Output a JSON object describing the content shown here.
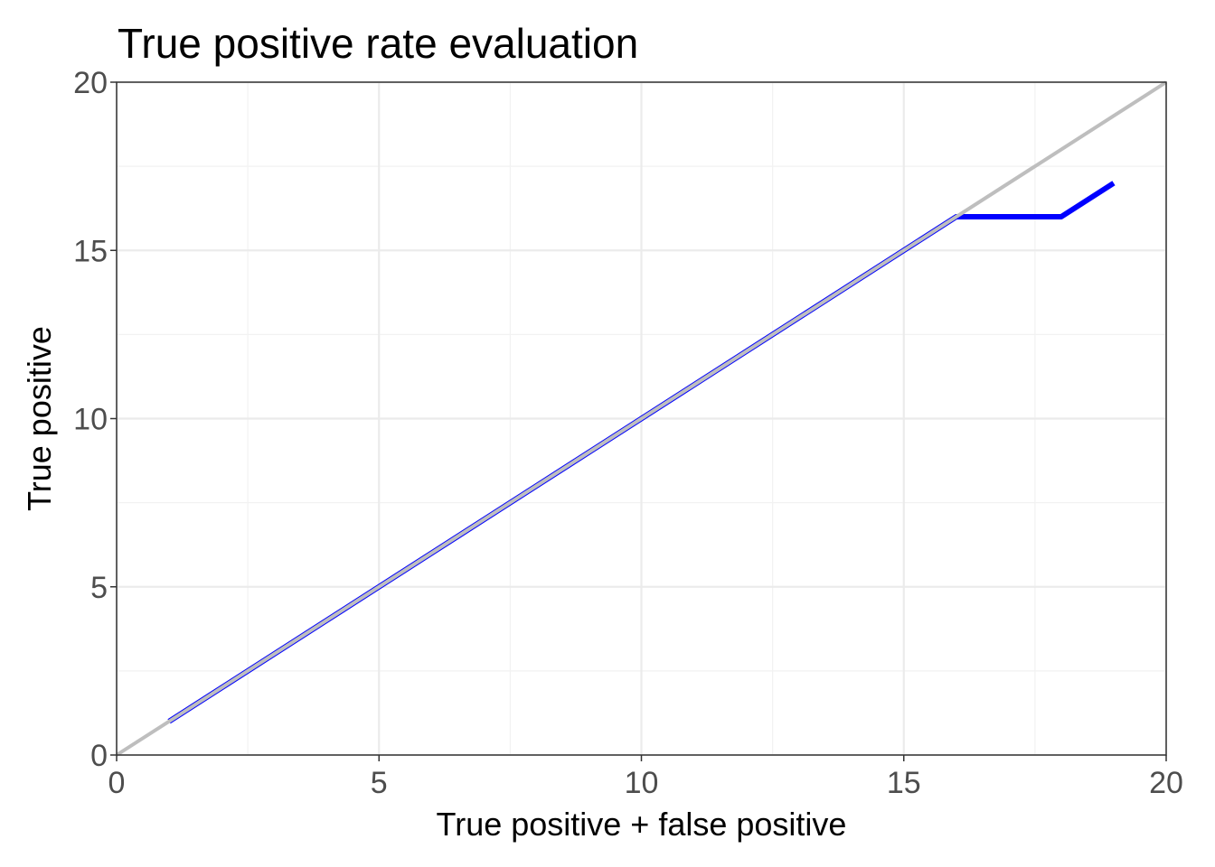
{
  "chart_data": {
    "type": "line",
    "title": "True positive rate evaluation",
    "xlabel": "True positive + false positive",
    "ylabel": "True positive",
    "xlim": [
      0,
      20
    ],
    "ylim": [
      0,
      20
    ],
    "x_ticks": [
      "0",
      "5",
      "10",
      "15",
      "20"
    ],
    "y_ticks": [
      "0",
      "5",
      "10",
      "15",
      "20"
    ],
    "grid": true,
    "legend": "none",
    "reference_line": {
      "x": [
        0,
        20
      ],
      "y": [
        0,
        20
      ],
      "color": "#bebebe"
    },
    "series": [
      {
        "x": [
          1,
          2,
          3,
          4,
          5,
          6,
          7,
          8,
          9,
          10,
          11,
          12,
          13,
          14,
          15,
          16,
          17,
          18,
          19
        ],
        "y": [
          1,
          2,
          3,
          4,
          5,
          6,
          7,
          8,
          9,
          10,
          11,
          12,
          13,
          14,
          15,
          16,
          16,
          16,
          17
        ],
        "color": "#0000ff"
      }
    ]
  }
}
